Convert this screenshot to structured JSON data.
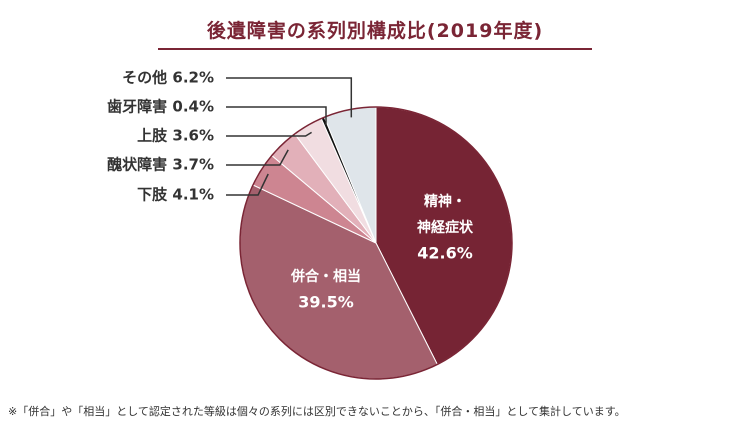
{
  "title": "後遺障害の系列別構成比(2019年度)",
  "note": "※「併合」や「相当」として認定された等級は個々の系列には区別できないことから、「併合・相当」として集計しています。",
  "chart_data": {
    "type": "pie",
    "title": "後遺障害の系列別構成比(2019年度)",
    "start": "12-o'clock",
    "direction": "clockwise",
    "slices": [
      {
        "label": "精神・神経症状",
        "value": 42.6,
        "value_label": "42.6%",
        "color": "#762434",
        "inside_lines": [
          "精神・",
          "神経症状"
        ]
      },
      {
        "label": "併合・相当",
        "value": 39.5,
        "value_label": "39.5%",
        "color": "#a4606d",
        "inside_lines": [
          "併合・相当"
        ]
      },
      {
        "label": "下肢",
        "value": 4.1,
        "value_label": "4.1%",
        "color": "#cd8591"
      },
      {
        "label": "醜状障害",
        "value": 3.7,
        "value_label": "3.7%",
        "color": "#e2b0b9"
      },
      {
        "label": "上肢",
        "value": 3.6,
        "value_label": "3.6%",
        "color": "#f1dde1"
      },
      {
        "label": "歯牙障害",
        "value": 0.4,
        "value_label": "0.4%",
        "color": "#111111"
      },
      {
        "label": "その他",
        "value": 6.2,
        "value_label": "6.2%",
        "color": "#dfe5ea"
      }
    ]
  }
}
